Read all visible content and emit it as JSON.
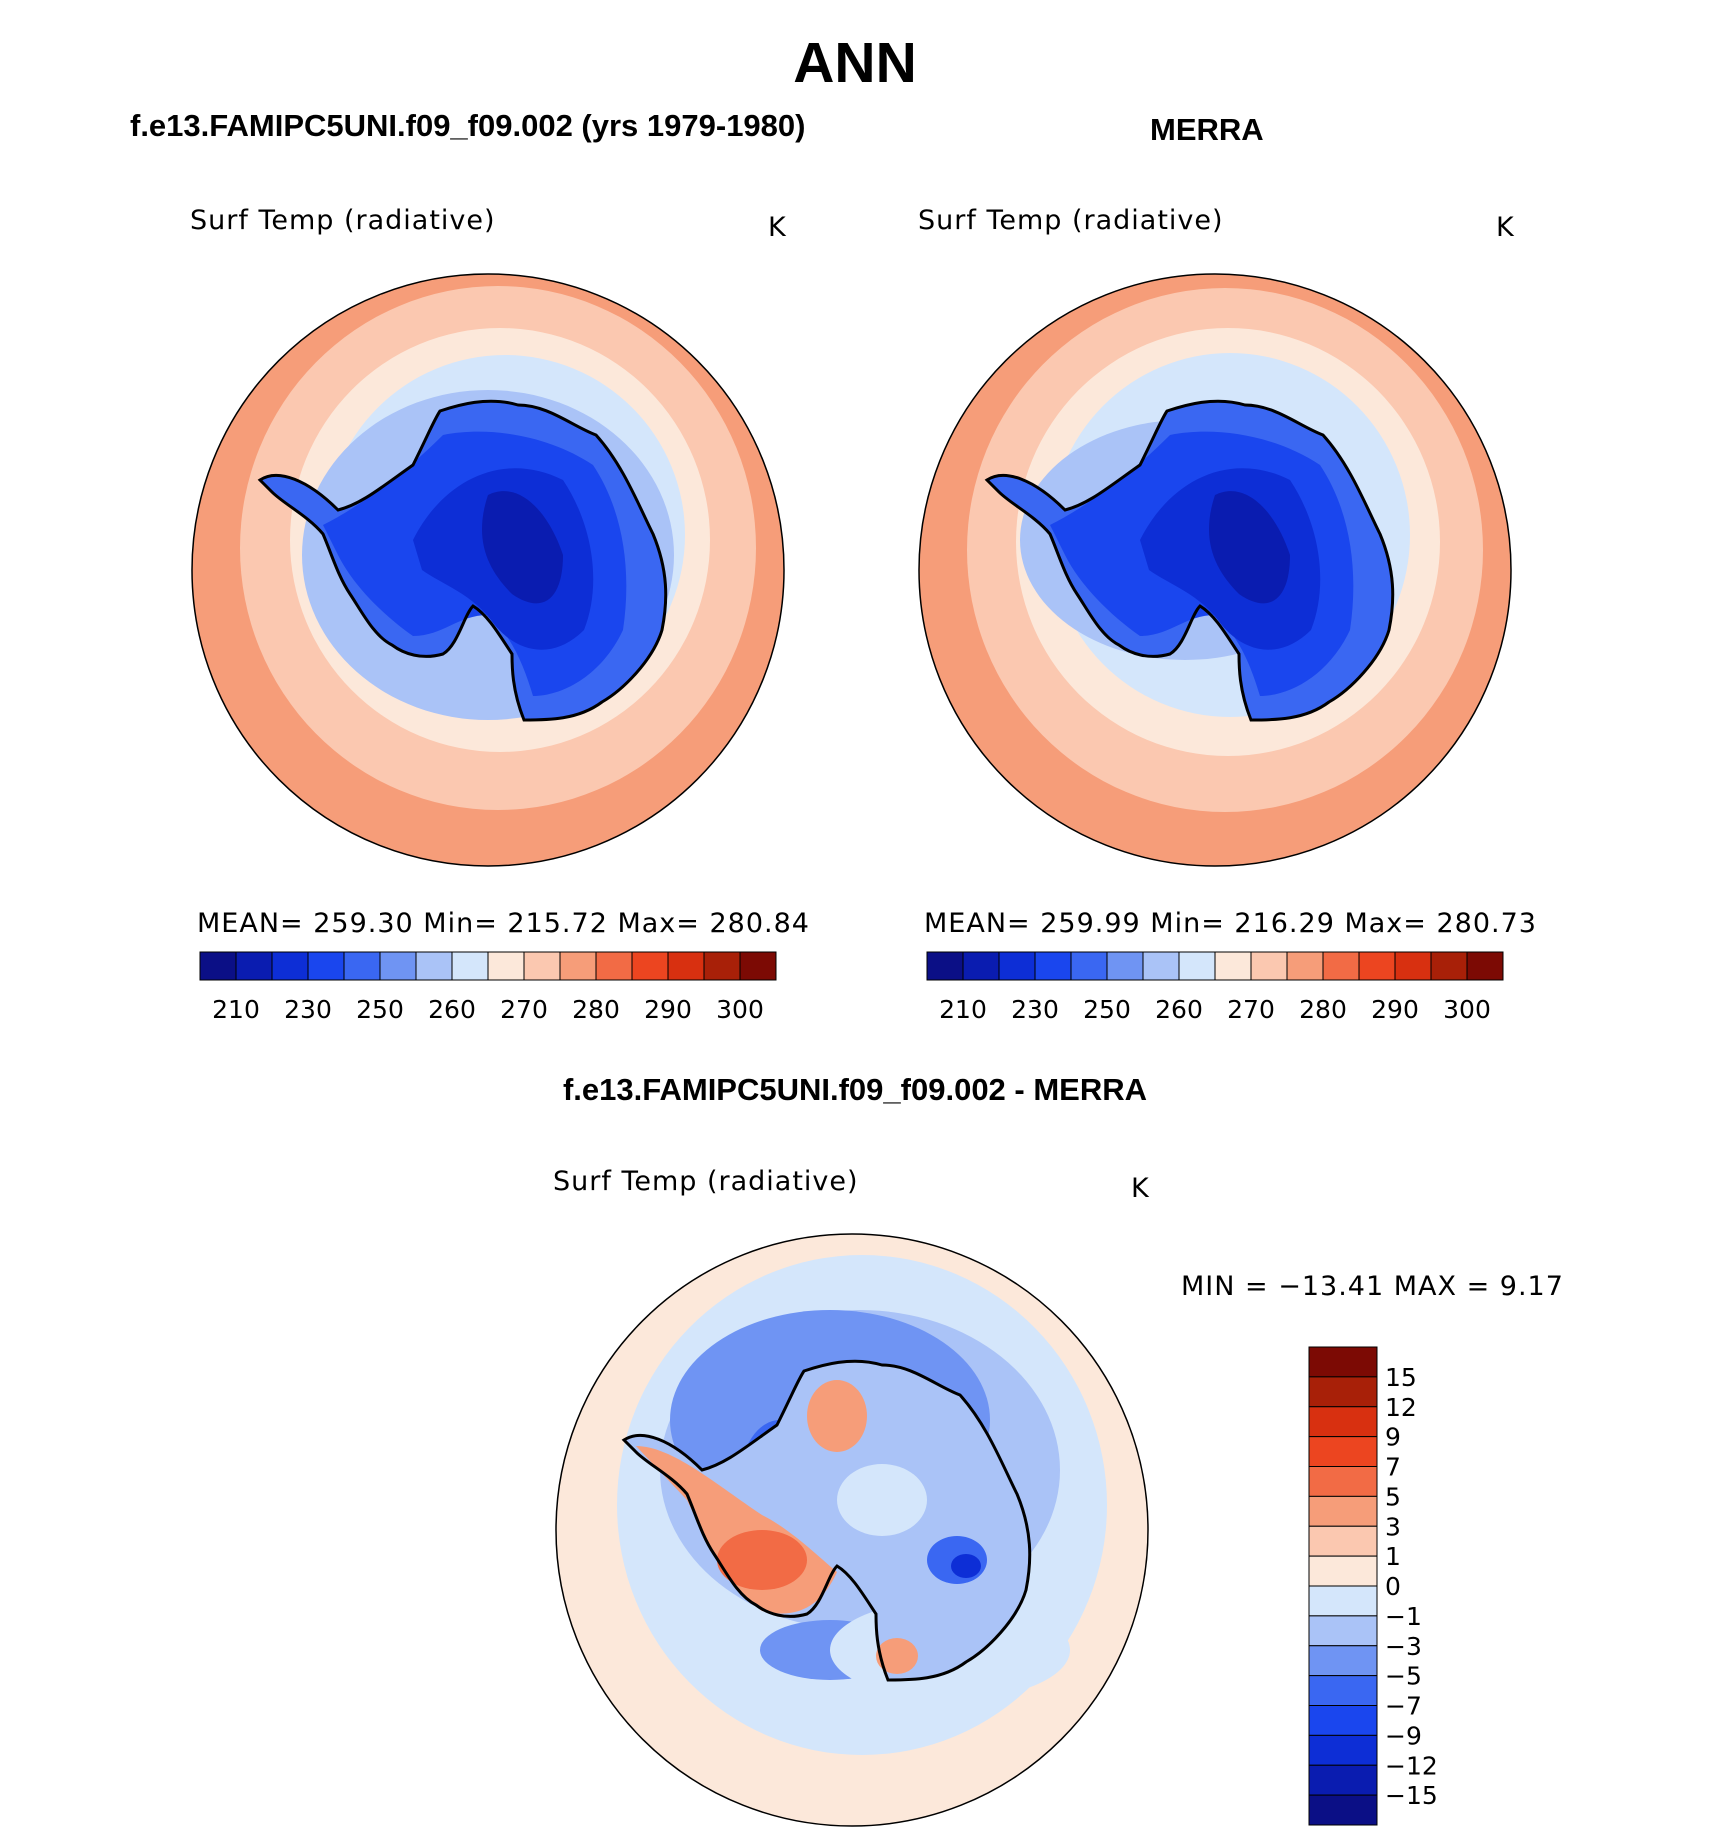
{
  "title": "ANN",
  "panels": {
    "model": {
      "caption": "f.e13.FAMIPC5UNI.f09_f09.002 (yrs 1979-1980)",
      "variable": "Surf Temp (radiative)",
      "units": "K",
      "stats": "MEAN=  259.30   Min=  215.72   Max=  280.84"
    },
    "obs": {
      "caption": "MERRA",
      "variable": "Surf Temp (radiative)",
      "units": "K",
      "stats": "MEAN=  259.99   Min=  216.29   Max=  280.73"
    },
    "diff": {
      "caption": "f.e13.FAMIPC5UNI.f09_f09.002 - MERRA",
      "variable": "Surf Temp (radiative)",
      "units": "K",
      "stats": "MIN  =  −13.41  MAX  =     9.17"
    }
  },
  "chart_data": [
    {
      "type": "heatmap",
      "projection": "south-polar-stereographic",
      "title": "f.e13.FAMIPC5UNI.f09_f09.002 (yrs 1979-1980)",
      "variable": "Surf Temp (radiative)",
      "units": "K",
      "mean": 259.3,
      "min": 215.72,
      "max": 280.84,
      "colorbar_levels": [
        210,
        220,
        230,
        240,
        250,
        255,
        260,
        265,
        270,
        275,
        280,
        285,
        290,
        295,
        300
      ],
      "colorbar_tick_labels": [
        "210",
        "230",
        "250",
        "260",
        "270",
        "280",
        "290",
        "300"
      ],
      "colorbar_colors": [
        "#0b0f86",
        "#0a1cb0",
        "#0d2ed6",
        "#1a46ee",
        "#3a67f2",
        "#6f94f3",
        "#aac3f7",
        "#d4e6fb",
        "#fce8da",
        "#fbc8b0",
        "#f69d79",
        "#f26b45",
        "#ec4520",
        "#d83010",
        "#a82008",
        "#7c0a04"
      ],
      "pattern": "Antarctic plateau 215-240 K; sea-ice ring 255-265 K; mid-latitude ocean 270-285 K"
    },
    {
      "type": "heatmap",
      "projection": "south-polar-stereographic",
      "title": "MERRA",
      "variable": "Surf Temp (radiative)",
      "units": "K",
      "mean": 259.99,
      "min": 216.29,
      "max": 280.73,
      "colorbar_levels": [
        210,
        220,
        230,
        240,
        250,
        255,
        260,
        265,
        270,
        275,
        280,
        285,
        290,
        295,
        300
      ],
      "colorbar_tick_labels": [
        "210",
        "230",
        "250",
        "260",
        "270",
        "280",
        "290",
        "300"
      ],
      "colorbar_colors": [
        "#0b0f86",
        "#0a1cb0",
        "#0d2ed6",
        "#1a46ee",
        "#3a67f2",
        "#6f94f3",
        "#aac3f7",
        "#d4e6fb",
        "#fce8da",
        "#fbc8b0",
        "#f69d79",
        "#f26b45",
        "#ec4520",
        "#d83010",
        "#a82008",
        "#7c0a04"
      ],
      "pattern": "Antarctic plateau 216-240 K; sea-ice ring 255-265 K; mid-latitude ocean 270-285 K"
    },
    {
      "type": "heatmap",
      "projection": "south-polar-stereographic",
      "title": "f.e13.FAMIPC5UNI.f09_f09.002 - MERRA",
      "variable": "Surf Temp (radiative)",
      "units": "K",
      "min": -13.41,
      "max": 9.17,
      "colorbar_levels": [
        -15,
        -12,
        -9,
        -7,
        -5,
        -3,
        -1,
        0,
        1,
        3,
        5,
        7,
        9,
        12,
        15
      ],
      "colorbar_tick_labels": [
        "15",
        "12",
        "9",
        "7",
        "5",
        "3",
        "1",
        "0",
        "−1",
        "−3",
        "−5",
        "−7",
        "−9",
        "−12",
        "−15"
      ],
      "colorbar_colors": [
        "#0b0f86",
        "#0a1cb0",
        "#0d2ed6",
        "#1a46ee",
        "#3a67f2",
        "#6f94f3",
        "#aac3f7",
        "#d4e6fb",
        "#fce8da",
        "#fbc8b0",
        "#f69d79",
        "#f26b45",
        "#ec4520",
        "#d83010",
        "#a82008",
        "#7c0a04"
      ],
      "pattern": "model warmer over West Antarctica / Peninsula (+3 to +9 K), colder over East Antarctic plateau and Weddell/Ross sea ice (-1 to -9 K)"
    }
  ]
}
